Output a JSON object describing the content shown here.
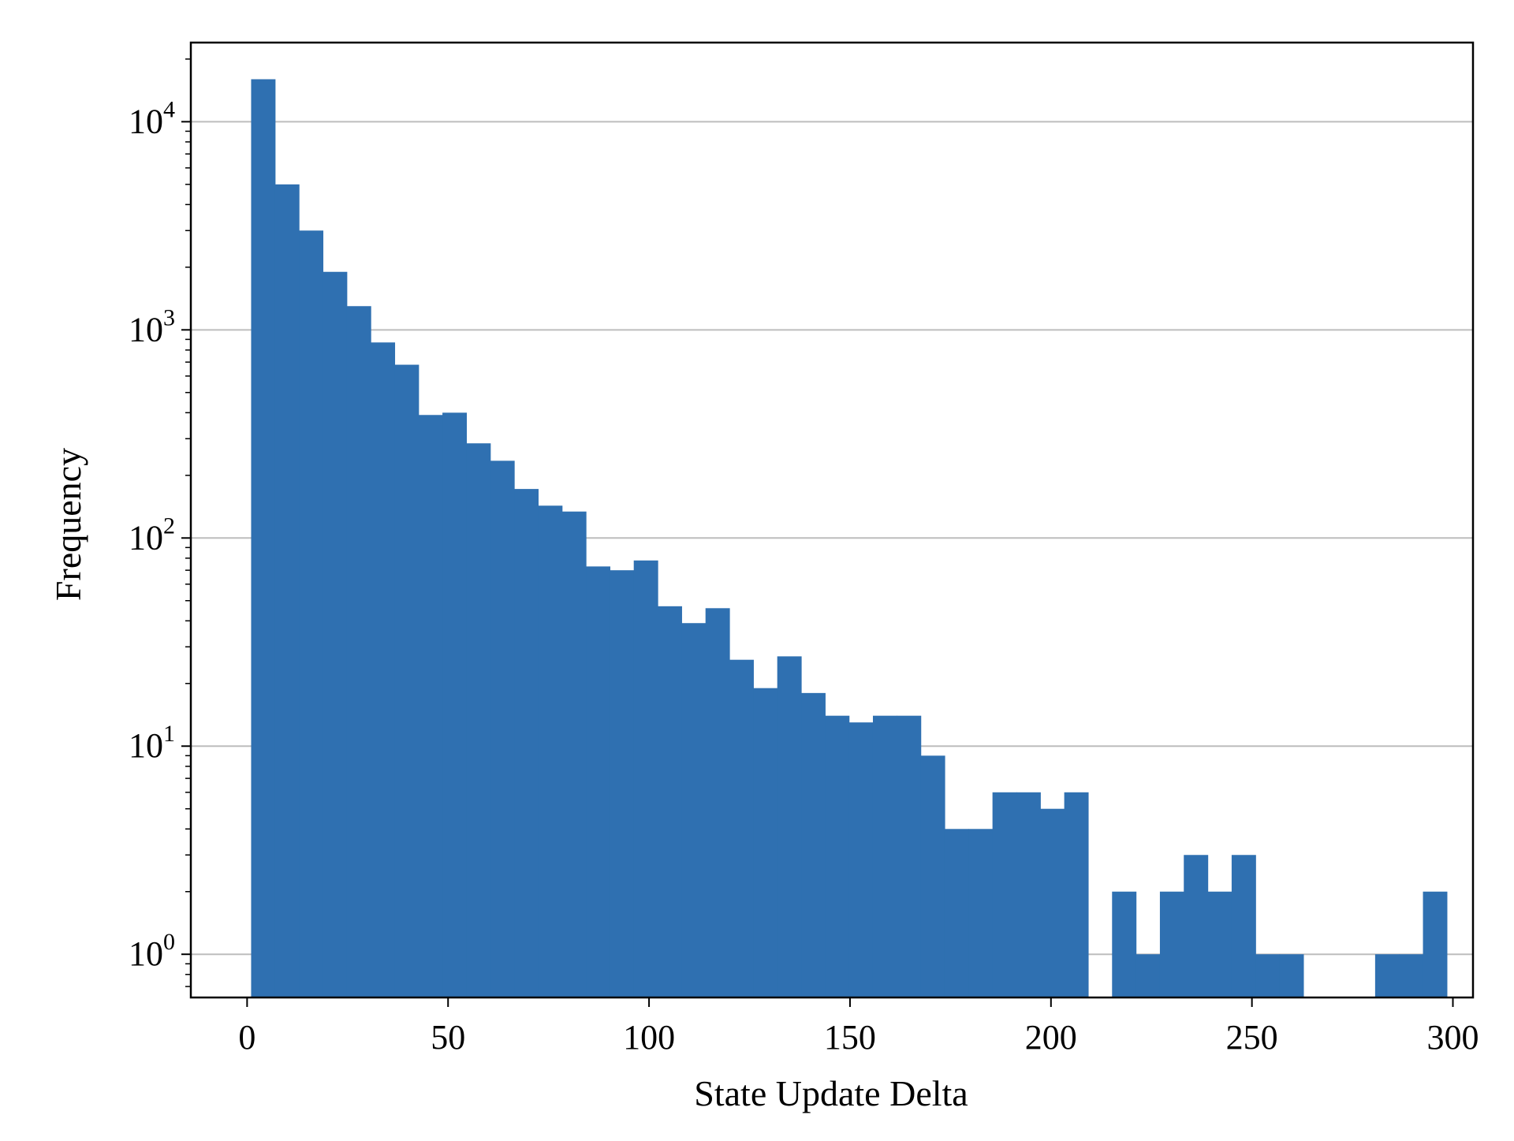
{
  "chart_data": {
    "type": "bar",
    "subtype": "histogram",
    "title": "",
    "xlabel": "State Update Delta",
    "ylabel": "Frequency",
    "xlim": [
      -14,
      305
    ],
    "ylim": [
      0.62,
      24000
    ],
    "yscale": "log",
    "grid": {
      "y": true,
      "x": false
    },
    "legend": "none",
    "bar_color": "#2f70b1",
    "bin_width": 5.95,
    "bin_start": 1,
    "values": [
      16000,
      5000,
      3000,
      1900,
      1300,
      870,
      680,
      390,
      400,
      285,
      235,
      172,
      143,
      134,
      73,
      70,
      78,
      47,
      39,
      46,
      26,
      19,
      27,
      18,
      14,
      13,
      14,
      14,
      9,
      4,
      4,
      6,
      6,
      5,
      6,
      0,
      2,
      1,
      2,
      3,
      2,
      3,
      1,
      1,
      0,
      0,
      0,
      1,
      1,
      2
    ],
    "x_ticks": [
      {
        "value": 0,
        "label": "0"
      },
      {
        "value": 50,
        "label": "50"
      },
      {
        "value": 100,
        "label": "100"
      },
      {
        "value": 150,
        "label": "150"
      },
      {
        "value": 200,
        "label": "200"
      },
      {
        "value": 250,
        "label": "250"
      },
      {
        "value": 300,
        "label": "300"
      }
    ],
    "y_ticks": [
      {
        "value": 1,
        "base": "10",
        "exp": "0"
      },
      {
        "value": 10,
        "base": "10",
        "exp": "1"
      },
      {
        "value": 100,
        "base": "10",
        "exp": "2"
      },
      {
        "value": 1000,
        "base": "10",
        "exp": "3"
      },
      {
        "value": 10000,
        "base": "10",
        "exp": "4"
      }
    ]
  }
}
